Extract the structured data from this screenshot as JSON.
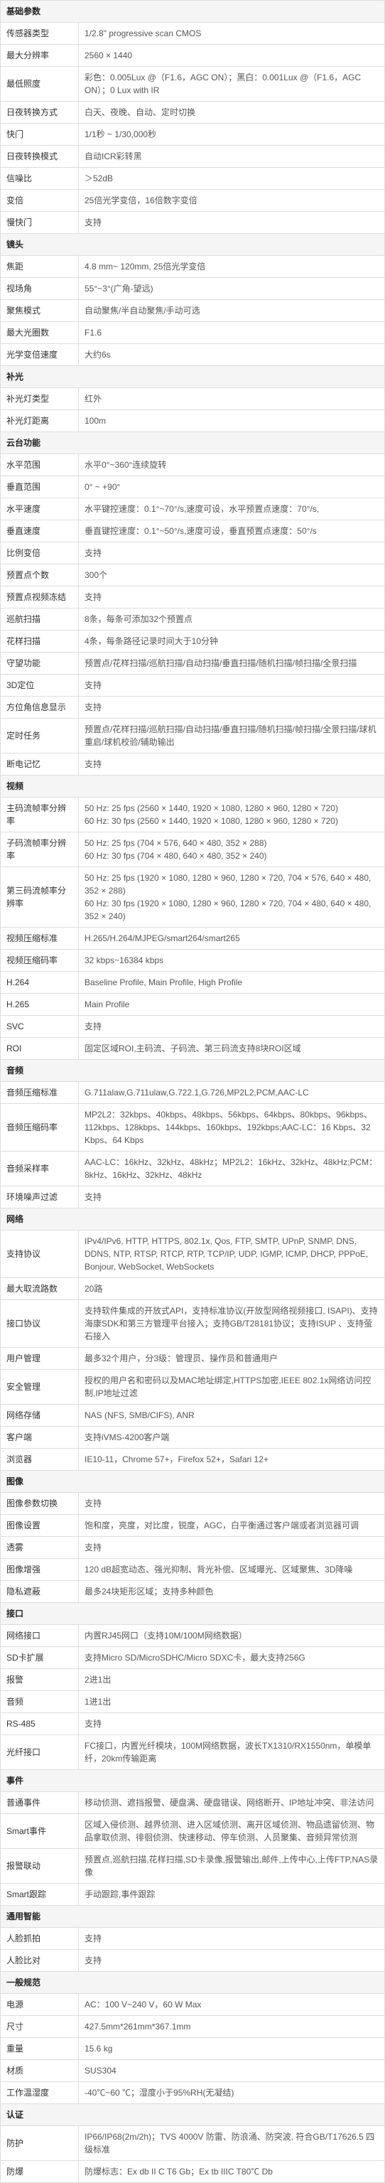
{
  "sections": [
    {
      "title": "基础参数",
      "rows": [
        {
          "label": "传感器类型",
          "value": "1/2.8\" progressive scan CMOS"
        },
        {
          "label": "最大分辨率",
          "value": "2560 × 1440"
        },
        {
          "label": "最低照度",
          "value": "彩色：0.005Lux @（F1.6，AGC ON）；黑白：0.001Lux @（F1.6，AGC ON）；0 Lux with IR"
        },
        {
          "label": "日夜转换方式",
          "value": "白天、夜晚、自动、定时切换"
        },
        {
          "label": "快门",
          "value": "1/1秒 ~ 1/30,000秒"
        },
        {
          "label": "日夜转换模式",
          "value": "自动ICR彩转黑"
        },
        {
          "label": "信噪比",
          "value": "＞52dB"
        },
        {
          "label": "变倍",
          "value": "25倍光学变倍，16倍数字变倍"
        },
        {
          "label": "慢快门",
          "value": "支持"
        }
      ]
    },
    {
      "title": "镜头",
      "rows": [
        {
          "label": "焦距",
          "value": "4.8 mm~ 120mm, 25倍光学变倍"
        },
        {
          "label": "视场角",
          "value": "55°~3°(广角-望远)"
        },
        {
          "label": "聚焦模式",
          "value": "自动聚焦/半自动聚焦/手动可选"
        },
        {
          "label": "最大光圈数",
          "value": "F1.6"
        },
        {
          "label": "光学变倍速度",
          "value": "大约6s"
        }
      ]
    },
    {
      "title": "补光",
      "rows": [
        {
          "label": "补光灯类型",
          "value": "红外"
        },
        {
          "label": "补光灯距离",
          "value": "100m"
        }
      ]
    },
    {
      "title": "云台功能",
      "rows": [
        {
          "label": "水平范围",
          "value": "水平0°~360°连续旋转"
        },
        {
          "label": "垂直范围",
          "value": "0° ~ +90°"
        },
        {
          "label": "水平速度",
          "value": "水平键控速度：0.1°~70°/s,速度可设，水平预置点速度：70°/s,"
        },
        {
          "label": "垂直速度",
          "value": "垂直键控速度：0.1°~50°/s,速度可设，垂直预置点速度：50°/s"
        },
        {
          "label": "比例变倍",
          "value": "支持"
        },
        {
          "label": "预置点个数",
          "value": "300个"
        },
        {
          "label": "预置点视频冻结",
          "value": "支持"
        },
        {
          "label": "巡航扫描",
          "value": "8条，每条可添加32个预置点"
        },
        {
          "label": "花样扫描",
          "value": "4条，每条路径记录时间大于10分钟"
        },
        {
          "label": "守望功能",
          "value": "预置点/花样扫描/巡航扫描/自动扫描/垂直扫描/随机扫描/帧扫描/全景扫描"
        },
        {
          "label": "3D定位",
          "value": "支持"
        },
        {
          "label": "方位角信息显示",
          "value": "支持"
        },
        {
          "label": "定时任务",
          "value": "预置点/花样扫描/巡航扫描/自动扫描/垂直扫描/随机扫描/帧扫描/全景扫描/球机重启/球机校验/辅助输出"
        },
        {
          "label": "断电记忆",
          "value": "支持"
        }
      ]
    },
    {
      "title": "视频",
      "rows": [
        {
          "label": "主码流帧率分辨率",
          "value": "50 Hz: 25 fps (2560 × 1440, 1920 × 1080, 1280 × 960, 1280 × 720)\n60 Hz: 30 fps (2560 × 1440, 1920 × 1080, 1280 × 960, 1280 × 720)"
        },
        {
          "label": "子码流帧率分辨率",
          "value": "50 Hz: 25 fps (704 × 576, 640 × 480, 352 × 288)\n60 Hz: 30 fps (704 × 480, 640 × 480, 352 × 240)"
        },
        {
          "label": "第三码流帧率分辨率",
          "value": "50 Hz: 25 fps (1920 × 1080, 1280 × 960, 1280 × 720, 704 × 576, 640 × 480, 352 × 288)\n60 Hz: 30 fps (1920 × 1080, 1280 × 960, 1280 × 720, 704 × 480, 640 × 480, 352 × 240)"
        },
        {
          "label": "视频压缩标准",
          "value": "H.265/H.264/MJPEG/smart264/smart265"
        },
        {
          "label": "视频压缩码率",
          "value": "32 kbps~16384 kbps"
        },
        {
          "label": "H.264",
          "value": "Baseline Profile, Main Profile, High Profile"
        },
        {
          "label": "H.265",
          "value": "Main Profile"
        },
        {
          "label": "SVC",
          "value": "支持"
        },
        {
          "label": "ROI",
          "value": "固定区域ROI,主码流、子码流、第三码流支持8块ROI区域"
        }
      ]
    },
    {
      "title": "音频",
      "rows": [
        {
          "label": "音频压缩标准",
          "value": "G.711alaw,G.711ulaw,G.722.1,G.726,MP2L2,PCM,AAC-LC"
        },
        {
          "label": "音频压缩码率",
          "value": "MP2L2：32kbps、40kbps、48kbps、56kbps、64kbps、80kbps、96kbps、112kbps、128kbps、144kbps、160kbps、192kbps;AAC-LC：16 Kbps、32 Kbps、64 Kbps"
        },
        {
          "label": "音频采样率",
          "value": "AAC-LC：16kHz、32kHz、48kHz；MP2L2：16kHz、32kHz、48kHz;PCM：8kHz、16kHz、32kHz、48kHz"
        },
        {
          "label": "环境噪声过滤",
          "value": "支持"
        }
      ]
    },
    {
      "title": "网络",
      "rows": [
        {
          "label": "支持协议",
          "value": "IPv4/IPv6, HTTP, HTTPS, 802.1x, Qos, FTP, SMTP, UPnP, SNMP, DNS, DDNS, NTP, RTSP, RTCP, RTP, TCP/IP, UDP, IGMP, ICMP, DHCP, PPPoE, Bonjour, WebSocket, WebSockets"
        },
        {
          "label": "最大取流路数",
          "value": "20路"
        },
        {
          "label": "接口协议",
          "value": "支持软件集成的开放式API，支持标准协议(开放型网络视频接口, ISAPI)、支持海康SDK和第三方管理平台接入；支持GB/T28181协议；支持ISUP 、支持萤石接入"
        },
        {
          "label": "用户管理",
          "value": "最多32个用户，分3级：管理员、操作员和普通用户"
        },
        {
          "label": "安全管理",
          "value": "授权的用户名和密码以及MAC地址绑定,HTTPS加密,IEEE 802.1x网络访问控制,IP地址过滤"
        },
        {
          "label": "网络存储",
          "value": "NAS (NFS, SMB/CIFS), ANR"
        },
        {
          "label": "客户端",
          "value": "支持iVMS-4200客户端"
        },
        {
          "label": "浏览器",
          "value": "IE10-11，Chrome 57+，Firefox 52+，Safari 12+"
        }
      ]
    },
    {
      "title": "图像",
      "rows": [
        {
          "label": "图像参数切换",
          "value": "支持"
        },
        {
          "label": "图像设置",
          "value": "饱和度，亮度，对比度，锐度，AGC，白平衡通过客户端或者浏览器可调"
        },
        {
          "label": "透雾",
          "value": "支持"
        },
        {
          "label": "图像增强",
          "value": "120 dB超宽动态、强光抑制、背光补偿、区域曝光、区域聚焦、3D降噪"
        },
        {
          "label": "隐私遮蔽",
          "value": "最多24块矩形区域；支持多种颜色"
        }
      ]
    },
    {
      "title": "接口",
      "rows": [
        {
          "label": "网络接口",
          "value": "内置RJ45网口（支持10M/100M网络数据）"
        },
        {
          "label": "SD卡扩展",
          "value": "支持Micro SD/MicroSDHC/Micro SDXC卡，最大支持256G"
        },
        {
          "label": "报警",
          "value": "2进1出"
        },
        {
          "label": "音频",
          "value": "1进1出"
        },
        {
          "label": "RS-485",
          "value": "支持"
        },
        {
          "label": "光纤接口",
          "value": "FC接口，内置光纤模块，100M网络数据，波长TX1310/RX1550nm，单模单纤，20km传输距离"
        }
      ]
    },
    {
      "title": "事件",
      "rows": [
        {
          "label": "普通事件",
          "value": "移动侦测、遮挡报警、硬盘满、硬盘错误、网络断开、IP地址冲突、非法访问"
        },
        {
          "label": "Smart事件",
          "value": "区域入侵侦测、越界侦测、进入区域侦测、离开区域侦测、物品遗留侦测、物品拿取侦测、徘徊侦测、快速移动、停车侦测、人员聚集、音频异常侦测"
        },
        {
          "label": "报警联动",
          "value": "预置点,巡航扫描,花样扫描,SD卡录像,报警输出,邮件,上传中心,上传FTP,NAS录像"
        },
        {
          "label": "Smart跟踪",
          "value": "手动跟踪,事件跟踪"
        }
      ]
    },
    {
      "title": "通用智能",
      "rows": [
        {
          "label": "人脸抓拍",
          "value": "支持"
        },
        {
          "label": "人脸比对",
          "value": "支持"
        }
      ]
    },
    {
      "title": "一般规范",
      "rows": [
        {
          "label": "电源",
          "value": "AC：100 V~240 V，60 W Max"
        },
        {
          "label": "尺寸",
          "value": "427.5mm*261mm*367.1mm"
        },
        {
          "label": "重量",
          "value": "15.6 kg"
        },
        {
          "label": "材质",
          "value": "SUS304"
        },
        {
          "label": "工作温湿度",
          "value": "-40℃~60 ℃；湿度小于95%RH(无凝结)"
        }
      ]
    },
    {
      "title": "认证",
      "rows": [
        {
          "label": "防护",
          "value": "IP66/IP68(2m/2h)；TVS 4000V 防雷、防浪涌、防突波, 符合GB/T17626.5 四级标准"
        },
        {
          "label": "防爆",
          "value": "防爆标志：Ex db II C T6 Gb；Ex tb IIIC T80℃ Db"
        }
      ]
    }
  ]
}
